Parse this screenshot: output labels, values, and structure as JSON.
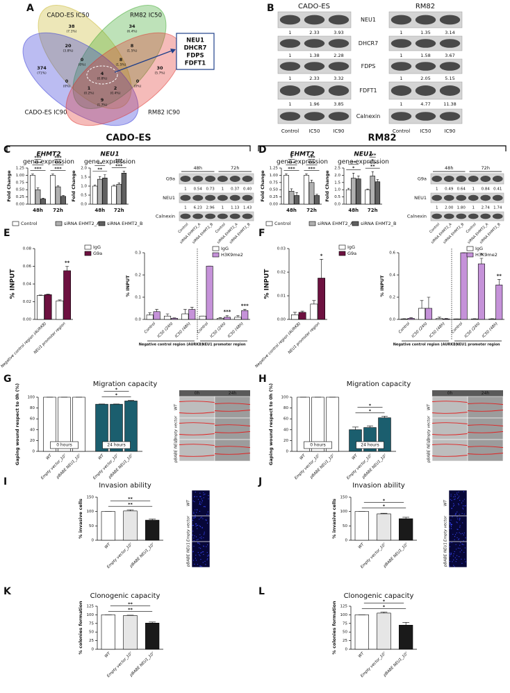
{
  "panel_labels": [
    "A",
    "B",
    "C",
    "D",
    "E",
    "F",
    "G",
    "H",
    "I",
    "J",
    "K",
    "L"
  ],
  "section_headers": [
    "CADO-ES",
    "RM82"
  ],
  "venn": {
    "sets": [
      {
        "label": "CADO-ES IC50",
        "color": "#c8b628"
      },
      {
        "label": "RM82 IC50",
        "color": "#3aa82a"
      },
      {
        "label": "CADO-ES IC90",
        "color": "#3035d8"
      },
      {
        "label": "RM82 IC90",
        "color": "#e0302a"
      }
    ],
    "regions": [
      {
        "count": "38",
        "percent": "(7.1%)"
      },
      {
        "count": "34",
        "percent": "(6.4%)"
      },
      {
        "count": "374",
        "percent": "(71%)"
      },
      {
        "count": "30",
        "percent": "(5.7%)"
      },
      {
        "count": "20",
        "percent": "(3.8%)"
      },
      {
        "count": "8",
        "percent": "(1.5%)"
      },
      {
        "count": "0",
        "percent": "(0%)"
      },
      {
        "count": "8",
        "percent": "(1.5%)"
      },
      {
        "count": "4",
        "percent": "(0.8%)"
      },
      {
        "count": "0",
        "percent": "(0%)"
      },
      {
        "count": "0",
        "percent": "(0%)"
      },
      {
        "count": "1",
        "percent": "(0.2%)"
      },
      {
        "count": "2",
        "percent": "(0.4%)"
      },
      {
        "count": "9",
        "percent": "(1.7%)"
      }
    ],
    "highlight": [
      {
        "name": "NEU1",
        "color": "#e00000"
      },
      {
        "name": "DHCR7",
        "color": "#000000"
      },
      {
        "name": "FDPS",
        "color": "#000000"
      },
      {
        "name": "FDFT1",
        "color": "#000000"
      }
    ]
  },
  "blots": [
    {
      "title": "CADO-ES",
      "row_labels": [
        "NEU1",
        "DHCR7",
        "FDPS",
        "FDFT1",
        "Calnexin"
      ],
      "values": [
        [
          "1",
          "2.33",
          "3.93"
        ],
        [
          "1",
          "1.38",
          "2.28"
        ],
        [
          "1",
          "2.33",
          "3.32"
        ],
        [
          "1",
          "1.96",
          "3.85"
        ]
      ],
      "lanes": [
        "Control",
        "IC50",
        "IC90"
      ]
    },
    {
      "title": "RM82",
      "values": [
        [
          "1",
          "1.35",
          "3.14"
        ],
        [
          "1",
          "1.58",
          "3.67"
        ],
        [
          "1",
          "2.05",
          "5.15"
        ],
        [
          "1",
          "4.77",
          "11.38"
        ]
      ],
      "lanes": [
        "Control",
        "IC50",
        "IC90"
      ]
    },
    {
      "time_points": [
        "48h",
        "72h"
      ],
      "row_labels": [
        "G9a",
        "NEU1",
        "Calnexin"
      ],
      "values": [
        [
          "1",
          "0.54",
          "0.73",
          "1",
          "0.37",
          "0.40"
        ],
        [
          "1",
          "6.23",
          "2.96",
          "1",
          "1.13",
          "1.43"
        ]
      ],
      "lanes": [
        "Control",
        "siRNA EHMT2_A",
        "siRNA EHMT2_B",
        "Control",
        "siRNA EHMT2_A",
        "siRNA EHMT2_B"
      ]
    },
    {
      "time_points": [
        "48h",
        "72h"
      ],
      "row_labels": [
        "G9a",
        "NEU1",
        "Calnexin"
      ],
      "values": [
        [
          "1",
          "0.49",
          "0.64",
          "1",
          "0.84",
          "0.41"
        ],
        [
          "1",
          "2.00",
          "1.80",
          "1",
          "2.74",
          "1.74"
        ]
      ],
      "lanes": [
        "Control",
        "siRNA EHMT2_A",
        "siRNA EHMT2_B",
        "Control",
        "siRNA EHMT2_A",
        "siRNA EHMT2_B"
      ]
    }
  ],
  "micrographs": [
    {
      "columns": [
        "0h",
        "24h"
      ],
      "rows": [
        "WT",
        "Empty vector",
        "pBABE NEU1"
      ]
    },
    {
      "columns": [
        "0h",
        "24h"
      ],
      "rows": [
        "WT",
        "Empty vector",
        "pBABE NEU1"
      ]
    },
    {
      "rows": [
        "WT",
        "Empty vector",
        "pBABE NEU1"
      ]
    },
    {
      "rows": [
        "WT",
        "Empty vector",
        "pBABE NEU1"
      ]
    }
  ],
  "chart_data": [
    {
      "type": "bar",
      "title": "EHMT2",
      "subtitle": "gene expression",
      "title_italic": true,
      "ylabel": "Fold Change",
      "categories": [
        "48h",
        "72h"
      ],
      "series": [
        {
          "name": "Control",
          "color": "#ffffff",
          "values": [
            1.0,
            1.0
          ],
          "errors": [
            0.04,
            0.04
          ]
        },
        {
          "name": "siRNA EHMT2_A",
          "color": "#b0b0b0",
          "values": [
            0.5,
            0.6
          ],
          "errors": [
            0.06,
            0.04
          ]
        },
        {
          "name": "siRNA EHMT2_B",
          "color": "#606060",
          "values": [
            0.18,
            0.27
          ],
          "errors": [
            0.03,
            0.03
          ]
        }
      ],
      "ylim": [
        0,
        1.25
      ],
      "yticks": [
        {
          "value": 0,
          "label": "0.00"
        },
        0.25,
        {
          "value": 0.5,
          "label": "0.50"
        },
        0.75,
        {
          "value": 1,
          "label": "1.00"
        },
        1.25
      ],
      "legend": "bottom",
      "annotations": [
        "***",
        "***",
        "***",
        "***",
        "***",
        "***"
      ]
    },
    {
      "type": "bar",
      "title": "NEU1",
      "subtitle": "gene expression",
      "title_italic": true,
      "ylabel": "Fold Change",
      "categories": [
        "48h",
        "72h"
      ],
      "series": [
        {
          "name": "Control",
          "color": "#ffffff",
          "values": [
            1.0,
            1.0
          ],
          "errors": [
            0.05,
            0.05
          ]
        },
        {
          "name": "siRNA EHMT2_A",
          "color": "#b0b0b0",
          "values": [
            1.38,
            1.1
          ],
          "errors": [
            0.15,
            0.08
          ]
        },
        {
          "name": "siRNA EHMT2_B",
          "color": "#606060",
          "values": [
            1.45,
            1.72
          ],
          "errors": [
            0.18,
            0.1
          ]
        }
      ],
      "ylim": [
        0,
        2
      ],
      "yticks": [
        {
          "value": 0,
          "label": "0.0"
        },
        0.5,
        {
          "value": 1,
          "label": "1.0"
        },
        1.5,
        {
          "value": 2,
          "label": "2.0"
        }
      ],
      "annotations": [
        "**",
        "**",
        "***",
        "***"
      ]
    },
    {
      "type": "bar",
      "title": "EHMT2",
      "subtitle": "gene expression",
      "title_italic": true,
      "ylabel": "Fold Change",
      "categories": [
        "48h",
        "72h"
      ],
      "series": [
        {
          "name": "Control",
          "color": "#ffffff",
          "values": [
            1.0,
            1.0
          ],
          "errors": [
            0.05,
            0.05
          ]
        },
        {
          "name": "siRNA EHMT2_A",
          "color": "#b0b0b0",
          "values": [
            0.45,
            0.75
          ],
          "errors": [
            0.08,
            0.08
          ]
        },
        {
          "name": "siRNA EHMT2_B",
          "color": "#606060",
          "values": [
            0.3,
            0.3
          ],
          "errors": [
            0.1,
            0.04
          ]
        }
      ],
      "ylim": [
        0,
        1.25
      ],
      "yticks": [
        {
          "value": 0,
          "label": "0.00"
        },
        0.25,
        {
          "value": 0.5,
          "label": "0.50"
        },
        0.75,
        {
          "value": 1,
          "label": "1.00"
        },
        1.25
      ],
      "legend": "bottom",
      "annotations": [
        "***",
        "***",
        "*",
        "***",
        "***",
        "***"
      ]
    },
    {
      "type": "bar",
      "title": "NEU1",
      "subtitle": "gene expression",
      "title_italic": true,
      "ylabel": "Fold Change",
      "categories": [
        "48h",
        "72h"
      ],
      "series": [
        {
          "name": "Control",
          "color": "#ffffff",
          "values": [
            1.0,
            1.0
          ],
          "errors": [
            0.1,
            0.05
          ]
        },
        {
          "name": "siRNA EHMT2_A",
          "color": "#b0b0b0",
          "values": [
            1.8,
            1.95
          ],
          "errors": [
            0.35,
            0.3
          ]
        },
        {
          "name": "siRNA EHMT2_B",
          "color": "#606060",
          "values": [
            1.75,
            1.55
          ],
          "errors": [
            0.2,
            0.15
          ]
        }
      ],
      "ylim": [
        0,
        2.5
      ],
      "yticks": [
        {
          "value": 0,
          "label": "0.0"
        },
        0.5,
        {
          "value": 1,
          "label": "1.0"
        },
        1.5,
        {
          "value": 2,
          "label": "2.0"
        },
        2.5
      ],
      "annotations": [
        "*",
        "**",
        "**",
        "*",
        "***"
      ]
    },
    {
      "type": "bar",
      "ylabel": "% INPUT",
      "categories": [
        "Negative control region (AURKB)",
        "NEU1 promoter region"
      ],
      "series": [
        {
          "name": "IgG",
          "color": "#ffffff",
          "values": [
            0.027,
            0.021
          ],
          "errors": [
            0.0005,
            0.001
          ]
        },
        {
          "name": "G9a",
          "color": "#6d1140",
          "values": [
            0.028,
            0.055
          ],
          "errors": [
            0.0005,
            0.005
          ],
          "significance": [
            null,
            "**"
          ]
        }
      ],
      "ylim": [
        0,
        0.08
      ],
      "yticks": [
        {
          "value": 0,
          "label": "0.00"
        },
        0.02,
        0.04,
        0.06,
        0.08
      ],
      "legend": "top-right"
    },
    {
      "type": "bar",
      "ylabel": "% INPUT",
      "categories": [
        "Control",
        "IC50 (24h)",
        "IC50 (48h)",
        "Control",
        "IC50 (24h)",
        "IC50 (48h)"
      ],
      "groups": [
        "Negative control region (AURKB)",
        "NEU1 promoter region"
      ],
      "series": [
        {
          "name": "IgG",
          "color": "#ffffff",
          "values": [
            0.02,
            0.015,
            0.025,
            0.015,
            0.005,
            0.01
          ],
          "errors": [
            0.01,
            0.01,
            0.02,
            0,
            0.003,
            0.008
          ]
        },
        {
          "name": "H3K9me2",
          "color": "#c592d9",
          "values": [
            0.035,
            0.005,
            0.045,
            0.24,
            0.01,
            0.04
          ],
          "errors": [
            0.01,
            0.002,
            0.01,
            0,
            0.008,
            0.005
          ],
          "significance": [
            null,
            null,
            null,
            null,
            "***",
            "***"
          ]
        }
      ],
      "ylim": [
        0,
        0.3
      ],
      "yticks": [
        {
          "value": 0,
          "label": "0.0"
        },
        0.1,
        0.2,
        0.3
      ],
      "legend": "top-right"
    },
    {
      "type": "bar",
      "ylabel": "% INPUT",
      "categories": [
        "Negative control region (AURKB)",
        "NEU1 promoter region"
      ],
      "series": [
        {
          "name": "IgG",
          "color": "#ffffff",
          "values": [
            0.002,
            0.0065
          ],
          "errors": [
            0.001,
            0.0015
          ]
        },
        {
          "name": "G9a",
          "color": "#6d1140",
          "values": [
            0.003,
            0.0175
          ],
          "errors": [
            0.0005,
            0.008
          ],
          "significance": [
            null,
            "*"
          ]
        }
      ],
      "ylim": [
        0,
        0.03
      ],
      "yticks": [
        {
          "value": 0,
          "label": "0.00"
        },
        0.01,
        0.02,
        0.03
      ],
      "legend": "top-right"
    },
    {
      "type": "bar",
      "ylabel": "% INPUT",
      "categories": [
        "Control",
        "IC50 (24h)",
        "IC50 (48h)",
        "Control",
        "IC50 (24h)",
        "IC50 (48h)"
      ],
      "groups": [
        "Negative control region (AURKB)",
        "NEU1 promoter region"
      ],
      "series": [
        {
          "name": "IgG",
          "color": "#ffffff",
          "values": [
            0.005,
            0.1,
            0.01,
            0.005,
            0.005,
            0.005
          ],
          "errors": [
            0.002,
            0.07,
            0.01,
            0,
            0.002,
            0.002
          ]
        },
        {
          "name": "H3K9me2",
          "color": "#c592d9",
          "values": [
            0.01,
            0.1,
            0.005,
            0.6,
            0.5,
            0.31
          ],
          "errors": [
            0.005,
            0.1,
            0.003,
            0,
            0.05,
            0.05
          ],
          "significance": [
            null,
            null,
            null,
            null,
            "*",
            "**"
          ]
        }
      ],
      "ylim": [
        0,
        0.6
      ],
      "yticks": [
        {
          "value": 0,
          "label": "0.0"
        },
        0.2,
        0.4,
        0.6
      ],
      "legend": "top-right"
    },
    {
      "type": "bar",
      "title": "Migration capacity",
      "ylabel": "Gaping wound respect to 0h (%)",
      "arrangement": "series-blocks",
      "categories": [
        "WT",
        "Empty vector_10⁷",
        "pBABE NEU1_10⁷"
      ],
      "series": [
        {
          "name": "0 hours",
          "color": "#ffffff",
          "values": [
            100,
            100,
            100
          ],
          "errors": [
            0,
            0,
            0
          ]
        },
        {
          "name": "24 hours",
          "color": "#1b5e6e",
          "values": [
            87,
            87,
            93
          ],
          "errors": [
            0.5,
            0.5,
            1
          ]
        }
      ],
      "ylim": [
        0,
        100
      ],
      "yticks": [
        0,
        20,
        40,
        60,
        80,
        100
      ],
      "annotations": [
        "*",
        "*"
      ]
    },
    {
      "type": "bar",
      "title": "Migration capacity",
      "ylabel": "Gaping wound respect to 0h (%)",
      "arrangement": "series-blocks",
      "categories": [
        "WT",
        "Empty vector_10⁷",
        "pBABE NEU1_10⁷"
      ],
      "series": [
        {
          "name": "0 hours",
          "color": "#ffffff",
          "values": [
            100,
            100,
            100
          ],
          "errors": [
            0,
            0,
            0
          ]
        },
        {
          "name": "24 hours",
          "color": "#1b5e6e",
          "values": [
            40,
            44,
            62
          ],
          "errors": [
            5,
            3,
            3
          ]
        }
      ],
      "ylim": [
        0,
        100
      ],
      "yticks": [
        0,
        20,
        40,
        60,
        80,
        100
      ],
      "annotations": [
        "*",
        "*"
      ]
    },
    {
      "type": "bar",
      "title": "Invasion ability",
      "ylabel": "% invasive cells",
      "categories": [
        "WT",
        "Empty vector_10⁷",
        "pBABE NEU1_10⁷"
      ],
      "values": [
        100,
        102,
        70
      ],
      "errors": [
        0,
        4,
        4
      ],
      "colors": [
        "#ffffff",
        "#e6e6e6",
        "#1a1a1a"
      ],
      "ylim": [
        0,
        150
      ],
      "yticks": [
        0,
        50,
        100,
        150
      ],
      "annotations": [
        "**",
        "**"
      ]
    },
    {
      "type": "bar",
      "title": "Invasion ability",
      "ylabel": "% invasive cells",
      "categories": [
        "WT",
        "Empty vector_10⁷",
        "pBABE NEU1_10⁷"
      ],
      "values": [
        100,
        92,
        75
      ],
      "errors": [
        0,
        2,
        5
      ],
      "colors": [
        "#ffffff",
        "#e6e6e6",
        "#1a1a1a"
      ],
      "ylim": [
        0,
        150
      ],
      "yticks": [
        0,
        50,
        100,
        150
      ],
      "annotations": [
        "*",
        "*"
      ]
    },
    {
      "type": "bar",
      "title": "Clonogenic capacity",
      "ylabel": "% colonies formation",
      "categories": [
        "WT",
        "Empty vector_10⁷",
        "pBABE NEU1_10⁷"
      ],
      "values": [
        100,
        98,
        76
      ],
      "errors": [
        0,
        1,
        3
      ],
      "colors": [
        "#ffffff",
        "#e6e6e6",
        "#1a1a1a"
      ],
      "ylim": [
        0,
        125
      ],
      "yticks": [
        0,
        25,
        50,
        75,
        100,
        125
      ],
      "annotations": [
        "**",
        "**"
      ]
    },
    {
      "type": "bar",
      "title": "Clonogenic capacity",
      "ylabel": "% colonies formation",
      "categories": [
        "WT",
        "Empty vector_10⁷",
        "pBABE NEU1_10⁷"
      ],
      "values": [
        100,
        105,
        70
      ],
      "errors": [
        0,
        3,
        8
      ],
      "colors": [
        "#ffffff",
        "#e6e6e6",
        "#1a1a1a"
      ],
      "ylim": [
        0,
        125
      ],
      "yticks": [
        0,
        25,
        50,
        75,
        100,
        125
      ],
      "annotations": [
        "*",
        "*"
      ]
    }
  ]
}
